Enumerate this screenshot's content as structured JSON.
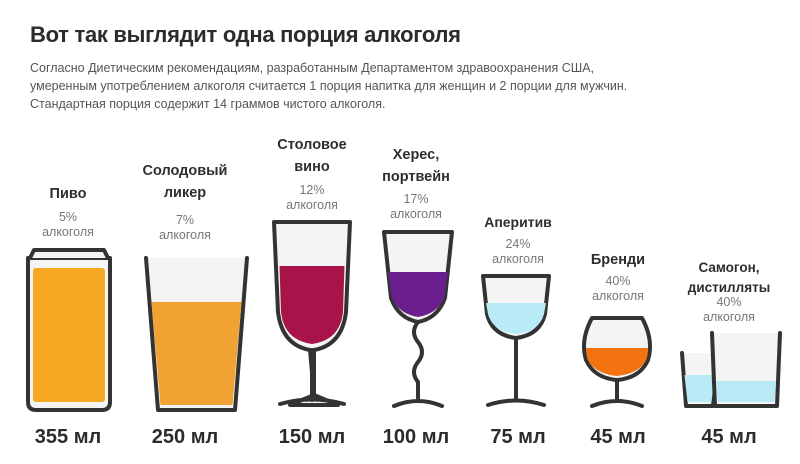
{
  "title": "Вот так выглядит одна порция алкоголя",
  "intro": [
    "Согласно Диетическим рекомендациям, разработанным Департаментом здравоохранения США,",
    " умеренным употреблением алкоголя считается 1 порция напитка для женщин и 2 порции для мужчин.",
    "Стандартная порция содержит 14 граммов чистого алкоголя."
  ],
  "drinks": [
    {
      "name": [
        "Пиво"
      ],
      "percent": "5%",
      "percent_suffix": "алкоголя",
      "volume": "355 мл",
      "fill_color": "#f7a823"
    },
    {
      "name": [
        "Солодовый",
        "ликер"
      ],
      "percent": "7%",
      "percent_suffix": "алкоголя",
      "volume": "250 мл",
      "fill_color": "#f0a232"
    },
    {
      "name": [
        "Столовое",
        "вино"
      ],
      "percent": "12%",
      "percent_suffix": "алкоголя",
      "volume": "150 мл",
      "fill_color": "#a8134a"
    },
    {
      "name": [
        "Херес,",
        "портвейн"
      ],
      "percent": "17%",
      "percent_suffix": "алкоголя",
      "volume": "100 мл",
      "fill_color": "#6b1f8e"
    },
    {
      "name": [
        "Аперитив"
      ],
      "percent": "24%",
      "percent_suffix": "алкоголя",
      "volume": "75 мл",
      "fill_color": "#b9ebf7"
    },
    {
      "name": [
        "Бренди"
      ],
      "percent": "40%",
      "percent_suffix": "алкоголя",
      "volume": "45 мл",
      "fill_color": "#f2730f"
    },
    {
      "name": [
        "Самогон,",
        "дистилляты"
      ],
      "percent": "40%",
      "percent_suffix": "алкоголя",
      "volume": "45 мл",
      "fill_color": "#b9ebf7"
    }
  ],
  "colors": {
    "outline": "#333333",
    "glass": "#f4f4f4"
  }
}
